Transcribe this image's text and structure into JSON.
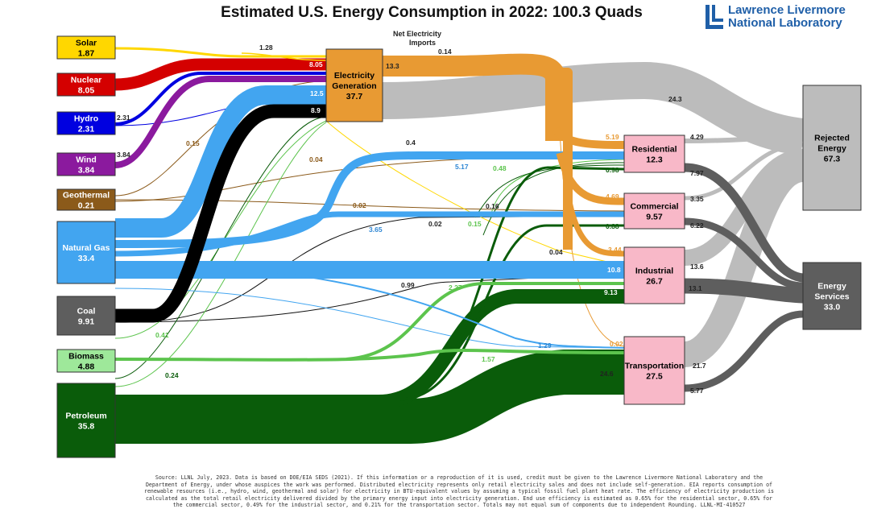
{
  "title": "Estimated U.S. Energy Consumption in 2022: 100.3 Quads",
  "logo": {
    "line1": "Lawrence Livermore",
    "line2": "National Laboratory"
  },
  "net_imports_label_1": "Net Electricity",
  "net_imports_label_2": "Imports",
  "source_note": "Source: LLNL July, 2023. Data is based on DOE/EIA SEDS (2021). If this information or a reproduction of it is used, credit must be given to the Lawrence Livermore National Laboratory and the\nDepartment of Energy, under whose auspices the work was performed. Distributed electricity represents only retail electricity sales and does not include self-generation. EIA reports consumption of\nrenewable resources (i.e., hydro, wind, geothermal and solar) for electricity in BTU-equivalent values by assuming a typical fossil fuel plant heat rate. The efficiency of electricity production is\ncalculated as the total retail electricity delivered divided by the primary energy input into electricity generation. End use efficiency is estimated as 0.65% for the residential sector, 0.65% for\nthe commercial sector, 0.49% for the industrial sector, and 0.21% for the transportation sector. Totals may not equal sum of components due to independent Rounding. LLNL-MI-410527",
  "colors": {
    "solar": "#ffd700",
    "nuclear": "#d40000",
    "hydro": "#0000e0",
    "wind": "#8b1a9e",
    "geothermal": "#8b5a1a",
    "gas": "#42a5f0",
    "coal": "#000000",
    "biomass": "#5cc44d",
    "petroleum": "#0a5c0a",
    "electricity": "#e89a33",
    "rejected": "#bcbcbc",
    "services": "#5e5e5e",
    "sector": "#f8b8c8"
  },
  "nodes": {
    "solar": {
      "name": "Solar",
      "value": "1.87"
    },
    "nuclear": {
      "name": "Nuclear",
      "value": "8.05"
    },
    "hydro": {
      "name": "Hydro",
      "value": "2.31"
    },
    "wind": {
      "name": "Wind",
      "value": "3.84"
    },
    "geothermal": {
      "name": "Geothermal",
      "value": "0.21"
    },
    "gas": {
      "name": "Natural Gas",
      "value": "33.4"
    },
    "coal": {
      "name": "Coal",
      "value": "9.91"
    },
    "biomass": {
      "name": "Biomass",
      "value": "4.88"
    },
    "petroleum": {
      "name": "Petroleum",
      "value": "35.8"
    },
    "electricity": {
      "name1": "Electricity",
      "name2": "Generation",
      "value": "37.7"
    },
    "residential": {
      "name": "Residential",
      "value": "12.3"
    },
    "commercial": {
      "name": "Commercial",
      "value": "9.57"
    },
    "industrial": {
      "name": "Industrial",
      "value": "26.7"
    },
    "transportation": {
      "name": "Transportation",
      "value": "27.5"
    },
    "rejected": {
      "name1": "Rejected",
      "name2": "Energy",
      "value": "67.3"
    },
    "services": {
      "name1": "Energy",
      "name2": "Services",
      "value": "33.0"
    }
  },
  "flow_labels": {
    "solar_elec": "1.28",
    "nuclear_elec": "8.05",
    "gas_elec": "12.5",
    "coal_elec": "8.9",
    "hydro_elec": "2.31",
    "wind_elec": "3.84",
    "imports": "0.14",
    "elec_out": "13.3",
    "elec_rejected": "24.3",
    "elec_res": "5.19",
    "elec_com": "4.69",
    "elec_ind": "3.44",
    "elec_trans": "0.02",
    "geo_res": "0.04",
    "geo_com": "0.02",
    "solar_ind": "0.15",
    "solar_res": "0.4",
    "gas_res": "5.17",
    "gas_com": "3.65",
    "gas_ind": "10.8",
    "gas_trans": "1.29",
    "coal_com": "0.02",
    "coal_ind": "0.99",
    "coal_trans": "0.04",
    "bio_res": "0.48",
    "bio_com": "0.15",
    "bio_ind": "2.27",
    "bio_trans": "1.57",
    "bio_elec": "0.41",
    "pet_res": "0.98",
    "pet_com": "0.88",
    "pet_ind": "9.13",
    "pet_trans": "24.6",
    "pet_elec": "0.24",
    "geo_elec": "0.15",
    "com_pet": "0.16",
    "res_rej": "4.29",
    "res_srv": "7.97",
    "com_rej": "3.35",
    "com_srv": "6.22",
    "ind_rej": "13.6",
    "ind_srv": "13.1",
    "trans_rej": "21.7",
    "trans_srv": "5.77"
  }
}
